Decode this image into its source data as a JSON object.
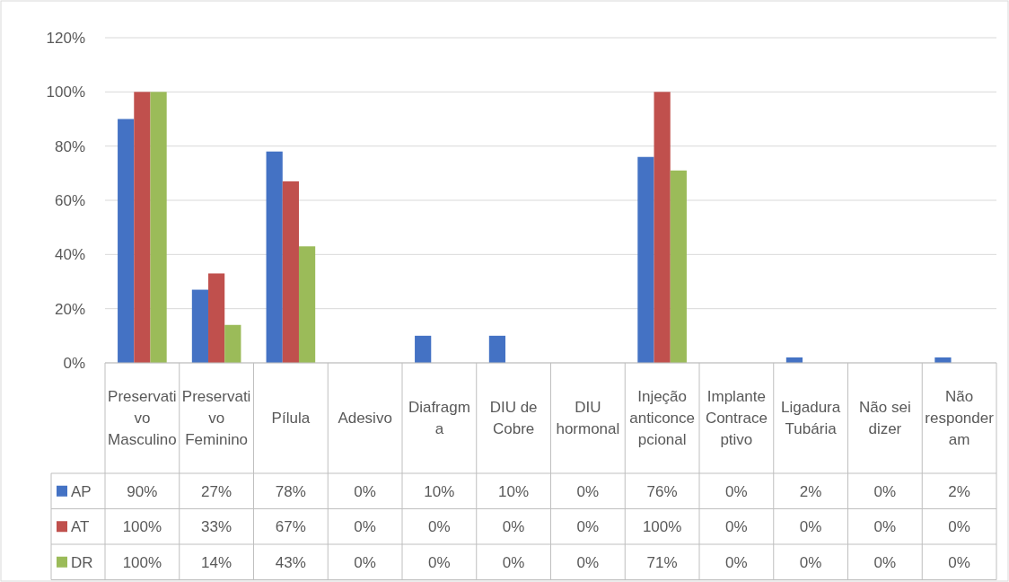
{
  "chart_data": {
    "type": "bar",
    "categories": [
      "Preservativo Masculino",
      "Preservativo Feminino",
      "Pílula",
      "Adesivo",
      "Diafragma",
      "DIU de Cobre",
      "DIU hormonal",
      "Injeção anticoncepcional",
      "Implante Contraceptivo",
      "Ligadura Tubária",
      "Não sei dizer",
      "Não responderam"
    ],
    "series": [
      {
        "name": "AP",
        "color": "#4472c4",
        "values": [
          90,
          27,
          78,
          0,
          10,
          10,
          0,
          76,
          0,
          2,
          0,
          2
        ],
        "value_labels": [
          "90%",
          "27%",
          "78%",
          "0%",
          "10%",
          "10%",
          "0%",
          "76%",
          "0%",
          "2%",
          "0%",
          "2%"
        ]
      },
      {
        "name": "AT",
        "color": "#c0504d",
        "values": [
          100,
          33,
          67,
          0,
          0,
          0,
          0,
          100,
          0,
          0,
          0,
          0
        ],
        "value_labels": [
          "100%",
          "33%",
          "67%",
          "0%",
          "0%",
          "0%",
          "0%",
          "100%",
          "0%",
          "0%",
          "0%",
          "0%"
        ]
      },
      {
        "name": "DR",
        "color": "#9bbb59",
        "values": [
          100,
          14,
          43,
          0,
          0,
          0,
          0,
          71,
          0,
          0,
          0,
          0
        ],
        "value_labels": [
          "100%",
          "14%",
          "43%",
          "0%",
          "0%",
          "0%",
          "0%",
          "71%",
          "0%",
          "0%",
          "0%",
          "0%"
        ]
      }
    ],
    "ylim": [
      0,
      120
    ],
    "yticks": [
      {
        "value": 0,
        "label": "0%"
      },
      {
        "value": 20,
        "label": "20%"
      },
      {
        "value": 40,
        "label": "40%"
      },
      {
        "value": 60,
        "label": "60%"
      },
      {
        "value": 80,
        "label": "80%"
      },
      {
        "value": 100,
        "label": "100%"
      },
      {
        "value": 120,
        "label": "120%"
      }
    ],
    "grid": "y",
    "legend": "bottom"
  }
}
